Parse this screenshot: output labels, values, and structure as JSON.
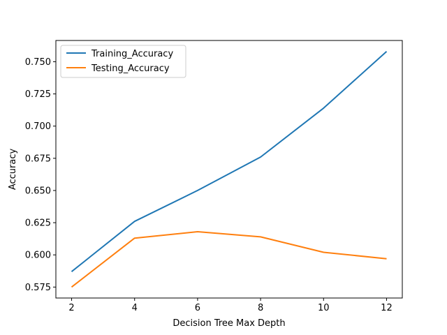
{
  "chart_data": {
    "type": "line",
    "xlabel": "Decision Tree Max Depth",
    "ylabel": "Accuracy",
    "x": [
      2,
      4,
      6,
      8,
      10,
      12
    ],
    "xticks": [
      2,
      4,
      6,
      8,
      10,
      12
    ],
    "xlim": [
      1.5,
      12.5
    ],
    "yticks": [
      "0.575",
      "0.600",
      "0.625",
      "0.650",
      "0.675",
      "0.700",
      "0.725",
      "0.750"
    ],
    "ylim": [
      0.5665,
      0.7665
    ],
    "grid": false,
    "legend_position": "top-left",
    "series": [
      {
        "name": "Training_Accuracy",
        "color": "#1f77b4",
        "values": [
          0.587,
          0.626,
          0.65,
          0.676,
          0.714,
          0.758
        ]
      },
      {
        "name": "Testing_Accuracy",
        "color": "#ff7f0e",
        "values": [
          0.575,
          0.613,
          0.618,
          0.614,
          0.602,
          0.597
        ]
      }
    ]
  }
}
